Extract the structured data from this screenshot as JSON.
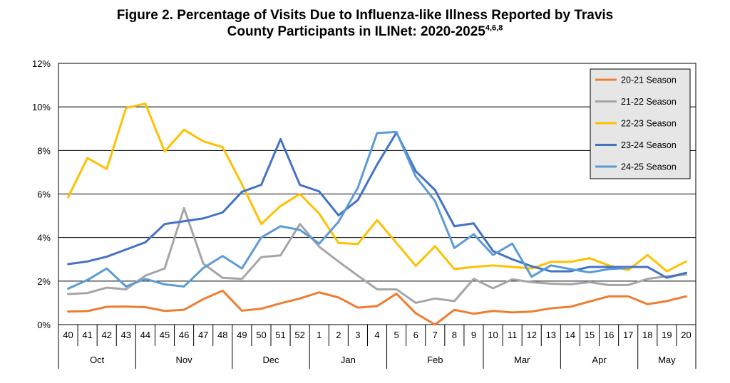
{
  "chart_data": {
    "type": "line",
    "title_line1": "Figure 2.  Percentage of Visits Due to Influenza-like Illness Reported by Travis",
    "title_line2": "County Participants in ILINet: 2020-2025",
    "title_superscript": "4,6,8",
    "xlabel": "",
    "ylabel": "",
    "ylim": [
      0,
      12
    ],
    "y_ticks": [
      0,
      2,
      4,
      6,
      8,
      10,
      12
    ],
    "y_tick_labels": [
      "0%",
      "2%",
      "4%",
      "6%",
      "8%",
      "10%",
      "12%"
    ],
    "grid": true,
    "legend_position": "top-right",
    "weeks": [
      "40",
      "41",
      "42",
      "43",
      "44",
      "45",
      "46",
      "47",
      "48",
      "49",
      "50",
      "51",
      "52",
      "1",
      "2",
      "3",
      "4",
      "5",
      "6",
      "7",
      "8",
      "9",
      "10",
      "11",
      "12",
      "13",
      "14",
      "15",
      "16",
      "17",
      "18",
      "19",
      "20"
    ],
    "months": [
      {
        "label": "Oct",
        "start": 0,
        "end": 3
      },
      {
        "label": "Nov",
        "start": 4,
        "end": 8
      },
      {
        "label": "Dec",
        "start": 9,
        "end": 12
      },
      {
        "label": "Jan",
        "start": 13,
        "end": 16
      },
      {
        "label": "Feb",
        "start": 17,
        "end": 21
      },
      {
        "label": "Mar",
        "start": 22,
        "end": 25
      },
      {
        "label": "Apr",
        "start": 26,
        "end": 29
      },
      {
        "label": "May",
        "start": 30,
        "end": 32
      }
    ],
    "series": [
      {
        "name": "20-21 Season",
        "color": "#ED7D31",
        "values": [
          0.6,
          0.62,
          0.82,
          0.83,
          0.8,
          0.63,
          0.68,
          1.17,
          1.56,
          0.64,
          0.73,
          0.98,
          1.2,
          1.48,
          1.25,
          0.78,
          0.85,
          1.42,
          0.52,
          0.0,
          0.68,
          0.5,
          0.63,
          0.56,
          0.6,
          0.75,
          0.82,
          1.06,
          1.3,
          1.3,
          0.94,
          1.08,
          1.3
        ]
      },
      {
        "name": "21-22 Season",
        "color": "#A5A5A5",
        "values": [
          1.4,
          1.45,
          1.7,
          1.62,
          2.25,
          2.58,
          5.35,
          2.8,
          2.15,
          2.1,
          3.1,
          3.18,
          4.62,
          3.58,
          2.9,
          2.25,
          1.62,
          1.62,
          1.0,
          1.2,
          1.08,
          2.1,
          1.67,
          2.08,
          1.95,
          1.88,
          1.85,
          1.95,
          1.82,
          1.82,
          2.1,
          2.22,
          2.3
        ]
      },
      {
        "name": "22-23 Season",
        "color": "#FFC000",
        "values": [
          5.85,
          7.65,
          7.15,
          9.95,
          10.15,
          7.95,
          8.95,
          8.42,
          8.15,
          6.45,
          4.62,
          5.45,
          6.0,
          5.1,
          3.75,
          3.7,
          4.8,
          3.75,
          2.7,
          3.6,
          2.55,
          2.65,
          2.72,
          2.65,
          2.58,
          2.88,
          2.88,
          3.05,
          2.72,
          2.5,
          3.2,
          2.45,
          2.9
        ]
      },
      {
        "name": "23-24 Season",
        "color": "#4472C4",
        "values": [
          2.78,
          2.9,
          3.12,
          3.45,
          3.78,
          4.62,
          4.75,
          4.88,
          5.15,
          6.1,
          6.42,
          8.52,
          6.42,
          6.12,
          5.02,
          5.72,
          7.35,
          8.82,
          7.05,
          6.18,
          4.52,
          4.65,
          3.38,
          3.0,
          2.68,
          2.45,
          2.45,
          2.65,
          2.65,
          2.65,
          2.65,
          2.15,
          2.38
        ]
      },
      {
        "name": "24-25 Season",
        "color": "#5B9BD5",
        "values": [
          1.65,
          2.05,
          2.58,
          1.75,
          2.1,
          1.85,
          1.75,
          2.6,
          3.15,
          2.58,
          4.0,
          4.52,
          4.35,
          3.72,
          4.72,
          6.28,
          8.8,
          8.85,
          6.8,
          5.68,
          3.52,
          4.15,
          3.2,
          3.72,
          2.2,
          2.72,
          2.55,
          2.4,
          2.55,
          2.6,
          null,
          null,
          null
        ]
      }
    ]
  }
}
